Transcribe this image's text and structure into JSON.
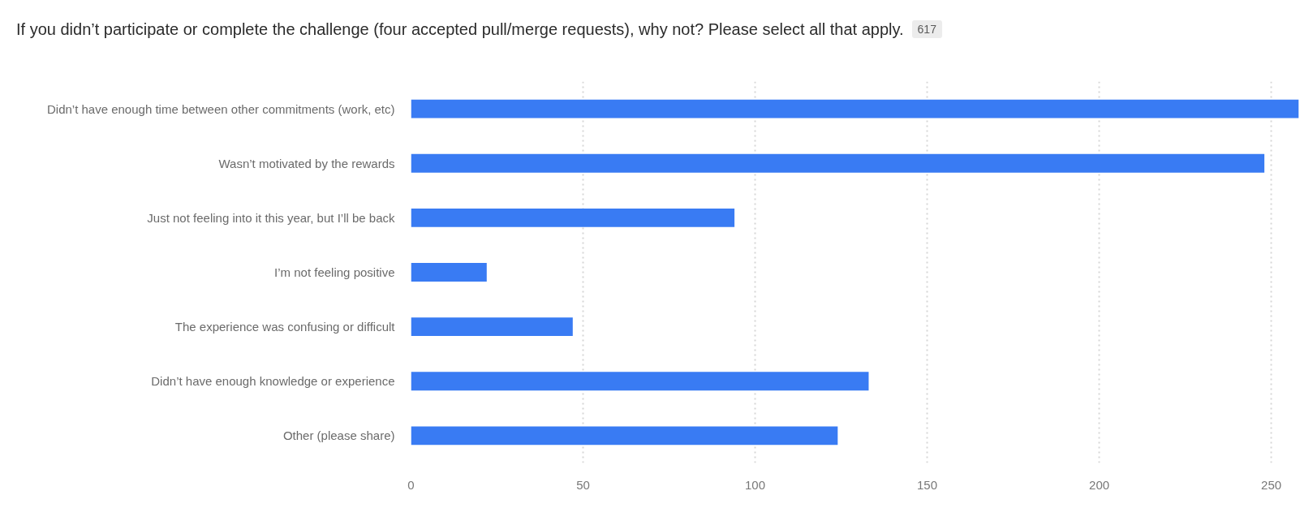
{
  "chart_data": {
    "type": "bar",
    "orientation": "horizontal",
    "title": "If you didn’t participate or complete the challenge (four accepted pull/merge requests), why not? Please select all that apply.",
    "annotations": [
      "617"
    ],
    "categories": [
      "Didn’t have enough time between other commitments (work, etc)",
      "Wasn’t motivated by the rewards",
      "Just not feeling into it this year, but I’ll be back",
      "I’m not feeling positive",
      "The experience was confusing or difficult",
      "Didn’t have enough knowledge or experience",
      "Other (please share)"
    ],
    "values": [
      258,
      248,
      94,
      22,
      47,
      133,
      124
    ],
    "color": "#397bf3",
    "xlim": [
      0,
      258
    ],
    "xticks": [
      0,
      50,
      100,
      150,
      200,
      250
    ],
    "grid": "x"
  }
}
